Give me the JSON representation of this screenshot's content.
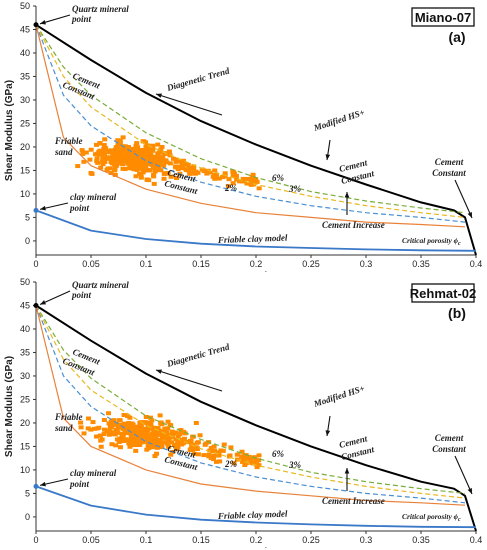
{
  "chart_data": [
    {
      "type": "line",
      "well": "Miano-07",
      "panel_label": "(a)",
      "xlabel": "Porosity",
      "ylabel": "Shear Modulus (GPa)",
      "xlim": [
        0,
        0.4
      ],
      "ylim": [
        -3,
        50
      ],
      "x_ticks": [
        0,
        0.05,
        0.1,
        0.15,
        0.2,
        0.25,
        0.3,
        0.35,
        0.4
      ],
      "x_tick_labels": [
        "0",
        "0.05",
        "0.1",
        "0.15",
        "0.2",
        "0.25",
        "0.3",
        "0.35",
        "0.4"
      ],
      "y_ticks": [
        0,
        5,
        10,
        15,
        20,
        25,
        30,
        35,
        40,
        45,
        50
      ],
      "grid": false,
      "series": [
        {
          "color": "#000000",
          "dash": "solid",
          "width": 2,
          "x": [
            0,
            0.05,
            0.1,
            0.15,
            0.2,
            0.25,
            0.3,
            0.35,
            0.38,
            0.39,
            0.4
          ],
          "y": [
            46,
            38.5,
            31.5,
            25.5,
            20.5,
            16,
            12,
            8.2,
            6.5,
            5,
            -3
          ]
        },
        {
          "color": "#7aad3a",
          "dash": "dashed",
          "width": 1.2,
          "x": [
            0,
            0.025,
            0.05,
            0.1,
            0.15,
            0.2,
            0.25,
            0.3,
            0.35,
            0.39
          ],
          "y": [
            46,
            37,
            31,
            23,
            17.5,
            13.5,
            10.5,
            8.5,
            7,
            6
          ]
        },
        {
          "color": "#e8b820",
          "dash": "dashed",
          "width": 1.2,
          "x": [
            0,
            0.025,
            0.05,
            0.1,
            0.15,
            0.2,
            0.25,
            0.3,
            0.35,
            0.39
          ],
          "y": [
            46,
            35,
            28.5,
            20.5,
            15.5,
            12,
            9.5,
            7.5,
            6,
            5
          ]
        },
        {
          "color": "#4a8fd0",
          "dash": "dashed",
          "width": 1.2,
          "x": [
            0,
            0.025,
            0.05,
            0.1,
            0.15,
            0.2,
            0.25,
            0.3,
            0.35,
            0.39
          ],
          "y": [
            46,
            31,
            24.5,
            17,
            12.5,
            9.5,
            7.5,
            6,
            5,
            4
          ]
        },
        {
          "color": "#e8823a",
          "dash": "solid",
          "width": 1.2,
          "x": [
            0,
            0.025,
            0.05,
            0.1,
            0.15,
            0.2,
            0.25,
            0.3,
            0.35,
            0.39
          ],
          "y": [
            46,
            22,
            16,
            11,
            8,
            6,
            5,
            4,
            3.5,
            3
          ]
        },
        {
          "color": "#3a78c8",
          "dash": "solid",
          "width": 1.8,
          "x": [
            0,
            0.05,
            0.1,
            0.15,
            0.2,
            0.25,
            0.3,
            0.35,
            0.4
          ],
          "y": [
            6.5,
            2.2,
            0.4,
            -0.6,
            -1.2,
            -1.5,
            -1.8,
            -2,
            -2.1
          ]
        }
      ],
      "scatter": {
        "color": "#ff8c00",
        "name": "Friable sand",
        "cluster": {
          "x_center": 0.09,
          "x_spread": 0.04,
          "y_center": 17.5,
          "y_spread": 2.8,
          "n": 380
        },
        "tail": {
          "x_from": 0.13,
          "x_to": 0.205,
          "y_from": 15.5,
          "y_to": 12.5,
          "n": 60
        }
      },
      "annotations": {
        "quartz": [
          "Quartz mineral",
          "point"
        ],
        "cement_constant_left": [
          "Cement",
          "Constant"
        ],
        "diagenetic_trend": "Diagenetic Trend",
        "modified_hs": "Modified HS+",
        "cement_constant_mid": [
          "Cement",
          "Constant"
        ],
        "cement_constant_right": [
          "Cement",
          "Constant"
        ],
        "friable_sand": [
          "Friable",
          "sand"
        ],
        "cement_constant_center": [
          "Cement",
          "Constant"
        ],
        "pct2": "2%",
        "pct3": "3%",
        "pct6": "6%",
        "cement_increase": "Cement Increase",
        "clay": [
          "clay mineral",
          "point"
        ],
        "friable_clay": "Friable clay model",
        "critical_porosity": "Critical porosity ϕ",
        "critical_sub": "c"
      }
    },
    {
      "type": "line",
      "well": "Rehmat-02",
      "panel_label": "(b)",
      "xlabel": "Porosity",
      "ylabel": "Shear Modulus (GPa)",
      "xlim": [
        0,
        0.4
      ],
      "ylim": [
        -3,
        50
      ],
      "x_ticks": [
        0,
        0.05,
        0.1,
        0.15,
        0.2,
        0.25,
        0.3,
        0.35,
        0.4
      ],
      "x_tick_labels": [
        "0",
        "0.05",
        "0.1",
        "0.15",
        "0.2",
        "0.25",
        "0.3",
        "0.35",
        "0.4"
      ],
      "y_ticks": [
        0,
        5,
        10,
        15,
        20,
        25,
        30,
        35,
        40,
        45,
        50
      ],
      "grid": false,
      "series": [
        {
          "color": "#000000",
          "dash": "solid",
          "width": 2,
          "x": [
            0,
            0.05,
            0.1,
            0.15,
            0.2,
            0.25,
            0.3,
            0.35,
            0.38,
            0.39,
            0.4
          ],
          "y": [
            45,
            37.5,
            30.5,
            24.5,
            19.5,
            15,
            11,
            7.5,
            6,
            4.5,
            -3
          ]
        },
        {
          "color": "#7aad3a",
          "dash": "dashed",
          "width": 1.2,
          "x": [
            0,
            0.025,
            0.05,
            0.1,
            0.15,
            0.2,
            0.25,
            0.3,
            0.35,
            0.39
          ],
          "y": [
            45,
            35.5,
            29.5,
            21.5,
            16.5,
            12.5,
            9.5,
            7.5,
            6,
            5
          ]
        },
        {
          "color": "#e8b820",
          "dash": "dashed",
          "width": 1.2,
          "x": [
            0,
            0.025,
            0.05,
            0.1,
            0.15,
            0.2,
            0.25,
            0.3,
            0.35,
            0.39
          ],
          "y": [
            45,
            33.5,
            27,
            19.5,
            14.5,
            11,
            8.5,
            6.5,
            5,
            4
          ]
        },
        {
          "color": "#4a8fd0",
          "dash": "dashed",
          "width": 1.2,
          "x": [
            0,
            0.025,
            0.05,
            0.1,
            0.15,
            0.2,
            0.25,
            0.3,
            0.35,
            0.39
          ],
          "y": [
            45,
            30,
            23.5,
            16,
            11.5,
            8.5,
            6.5,
            5,
            4,
            3
          ]
        },
        {
          "color": "#e8823a",
          "dash": "solid",
          "width": 1.2,
          "x": [
            0,
            0.025,
            0.05,
            0.1,
            0.15,
            0.2,
            0.25,
            0.3,
            0.35,
            0.39
          ],
          "y": [
            45,
            21,
            15,
            10,
            7,
            5.5,
            4.5,
            3.5,
            3,
            2.5
          ]
        },
        {
          "color": "#3a78c8",
          "dash": "solid",
          "width": 1.8,
          "x": [
            0,
            0.05,
            0.1,
            0.15,
            0.2,
            0.25,
            0.3,
            0.35,
            0.4
          ],
          "y": [
            6.5,
            2.4,
            0.5,
            -0.6,
            -1.2,
            -1.6,
            -1.9,
            -2.1,
            -2.2
          ]
        }
      ],
      "scatter": {
        "color": "#ff8c00",
        "name": "Friable sand",
        "cluster": {
          "x_center": 0.1,
          "x_spread": 0.045,
          "y_center": 17.5,
          "y_spread": 2.8,
          "n": 320
        },
        "tail": {
          "x_from": 0.14,
          "x_to": 0.205,
          "y_from": 14.5,
          "y_to": 11.5,
          "n": 60
        }
      },
      "annotations": {
        "quartz": [
          "Quartz mineral",
          "point"
        ],
        "cement_constant_left": [
          "Cement",
          "Constant"
        ],
        "diagenetic_trend": "Diagenetic Trend",
        "modified_hs": "Modified HS+",
        "cement_constant_mid": [
          "Cement",
          "Constant"
        ],
        "cement_constant_right": [
          "Cement",
          "Constant"
        ],
        "friable_sand": [
          "Friable",
          "sand"
        ],
        "cement_constant_center": [
          "Cement",
          "Constant"
        ],
        "pct2": "2%",
        "pct3": "3%",
        "pct6": "6%",
        "cement_increase": "Cement Increase",
        "clay": [
          "clay mineral",
          "point"
        ],
        "friable_clay": "Friable clay model",
        "critical_porosity": "Critical porosity ϕ",
        "critical_sub": "c"
      }
    }
  ]
}
